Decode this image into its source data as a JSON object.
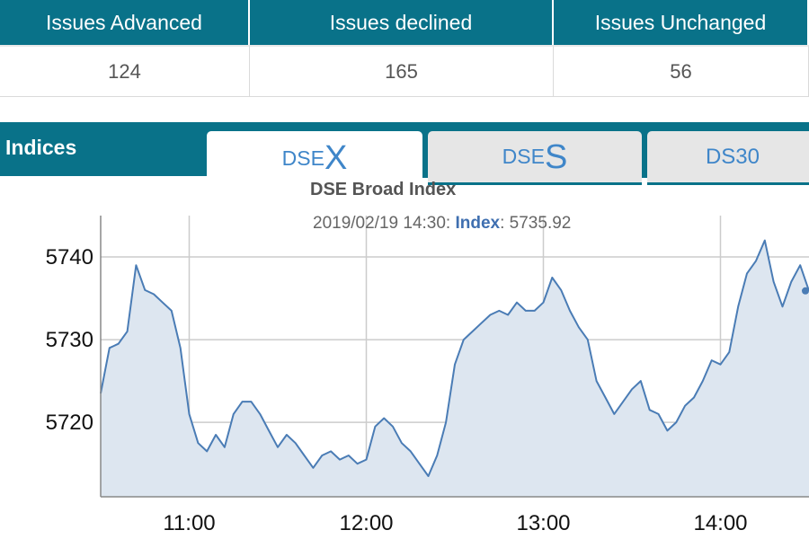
{
  "breadth": {
    "headers": [
      "Issues Advanced",
      "Issues declined",
      "Issues Unchanged"
    ],
    "values": [
      "124",
      "165",
      "56"
    ]
  },
  "indices": {
    "title": "Indices",
    "tabs": [
      {
        "prefix": "DSE",
        "suffix": "X"
      },
      {
        "prefix": "DSE",
        "suffix": "S"
      },
      {
        "label": "DS30"
      }
    ]
  },
  "tooltip": {
    "datetime": "2019/02/19 14:30:",
    "label": "Index",
    "value": "5735.92"
  },
  "colors": {
    "header": "#097289",
    "line": "#4a7cb5",
    "area": "#dde6f0",
    "tab_text": "#3f86c9"
  },
  "chart_data": {
    "type": "area",
    "title": "DSE Broad Index",
    "xlabel": "",
    "ylabel": "",
    "x_ticks": [
      "11:00",
      "12:00",
      "13:00",
      "14:00"
    ],
    "y_ticks": [
      5720,
      5730,
      5740
    ],
    "xlim": [
      "10:30",
      "14:30"
    ],
    "ylim": [
      5711,
      5745
    ],
    "grid": true,
    "series": [
      {
        "x": [
          "10:30",
          "10:33",
          "10:36",
          "10:39",
          "10:42",
          "10:45",
          "10:48",
          "10:51",
          "10:54",
          "10:57",
          "11:00",
          "11:03",
          "11:06",
          "11:09",
          "11:12",
          "11:15",
          "11:18",
          "11:21",
          "11:24",
          "11:27",
          "11:30",
          "11:33",
          "11:36",
          "11:39",
          "11:42",
          "11:45",
          "11:48",
          "11:51",
          "11:54",
          "11:57",
          "12:00",
          "12:03",
          "12:06",
          "12:09",
          "12:12",
          "12:15",
          "12:18",
          "12:21",
          "12:24",
          "12:27",
          "12:30",
          "12:33",
          "12:36",
          "12:39",
          "12:42",
          "12:45",
          "12:48",
          "12:51",
          "12:54",
          "12:57",
          "13:00",
          "13:03",
          "13:06",
          "13:09",
          "13:12",
          "13:15",
          "13:18",
          "13:21",
          "13:24",
          "13:27",
          "13:30",
          "13:33",
          "13:36",
          "13:39",
          "13:42",
          "13:45",
          "13:48",
          "13:51",
          "13:54",
          "13:57",
          "14:00",
          "14:03",
          "14:06",
          "14:09",
          "14:12",
          "14:15",
          "14:18",
          "14:21",
          "14:24",
          "14:27",
          "14:30"
        ],
        "values": [
          5723.5,
          5729,
          5729.5,
          5731,
          5739,
          5736,
          5735.5,
          5734.5,
          5733.5,
          5729,
          5721,
          5717.5,
          5716.5,
          5718.5,
          5717,
          5721,
          5722.5,
          5722.5,
          5721,
          5719,
          5717,
          5718.5,
          5717.5,
          5716,
          5714.5,
          5716,
          5716.5,
          5715.5,
          5716,
          5715,
          5715.5,
          5719.5,
          5720.5,
          5719.5,
          5717.5,
          5716.5,
          5715,
          5713.5,
          5716,
          5720,
          5727,
          5730,
          5731,
          5732,
          5733,
          5733.5,
          5733,
          5734.5,
          5733.5,
          5733.5,
          5734.5,
          5737.5,
          5736,
          5733.5,
          5731.5,
          5730,
          5725,
          5723,
          5721,
          5722.5,
          5724,
          5725,
          5721.5,
          5721,
          5719,
          5720,
          5722,
          5723,
          5725,
          5727.5,
          5727,
          5728.5,
          5734,
          5738,
          5739.5,
          5742,
          5737,
          5734,
          5737,
          5739,
          5735.9
        ]
      }
    ]
  }
}
